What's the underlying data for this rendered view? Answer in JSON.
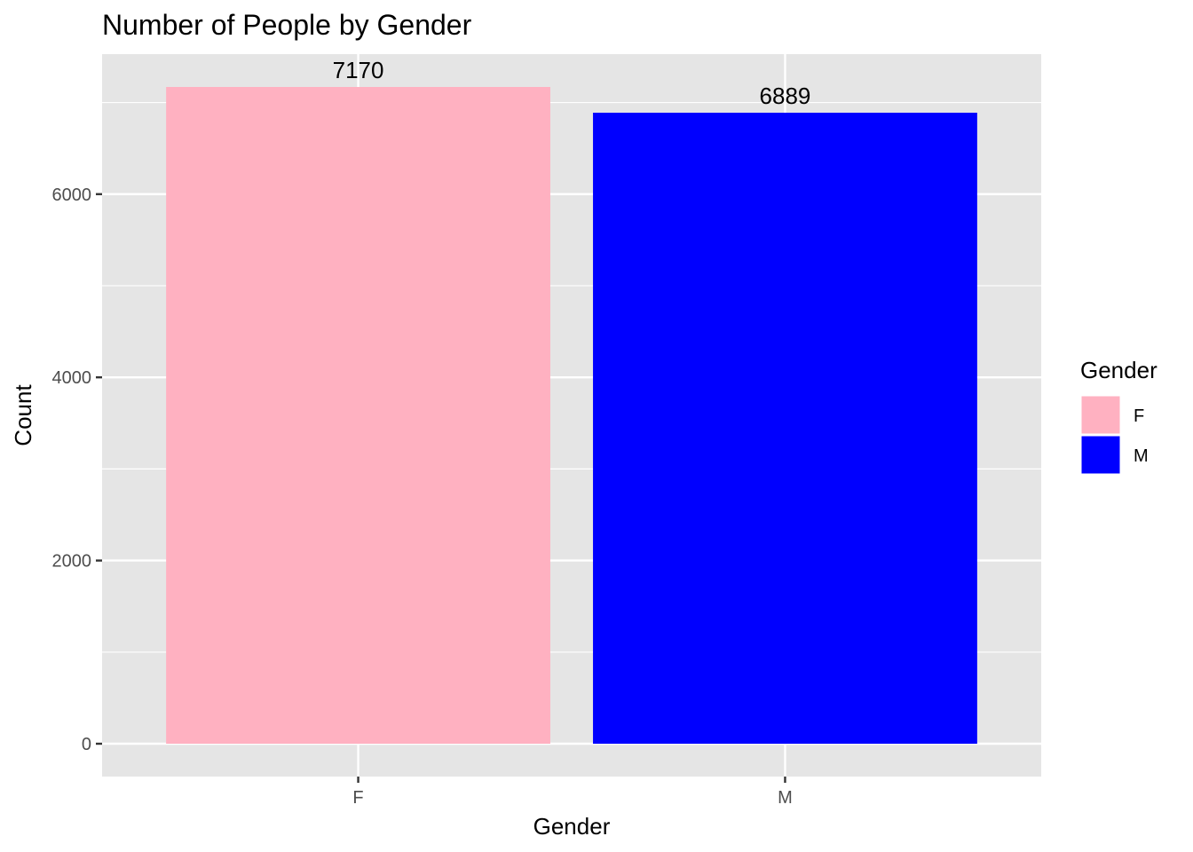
{
  "chart_data": {
    "type": "bar",
    "title": "Number of People by Gender",
    "xlabel": "Gender",
    "ylabel": "Count",
    "categories": [
      "F",
      "M"
    ],
    "values": [
      7170,
      6889
    ],
    "data_labels": [
      "7170",
      "6889"
    ],
    "bar_colors": [
      "#FFB1C1",
      "#0000FF"
    ],
    "ylim": [
      -358.5,
      7528.5
    ],
    "y_ticks": [
      0,
      2000,
      4000,
      6000
    ],
    "y_tick_labels": [
      "0",
      "2000",
      "4000",
      "6000"
    ],
    "grid": true,
    "panel_background": "#E5E5E5",
    "grid_color": "#FFFFFF",
    "legend": {
      "title": "Gender",
      "position": "right",
      "items": [
        {
          "label": "F",
          "color": "#FFB1C1"
        },
        {
          "label": "M",
          "color": "#0000FF"
        }
      ]
    }
  }
}
